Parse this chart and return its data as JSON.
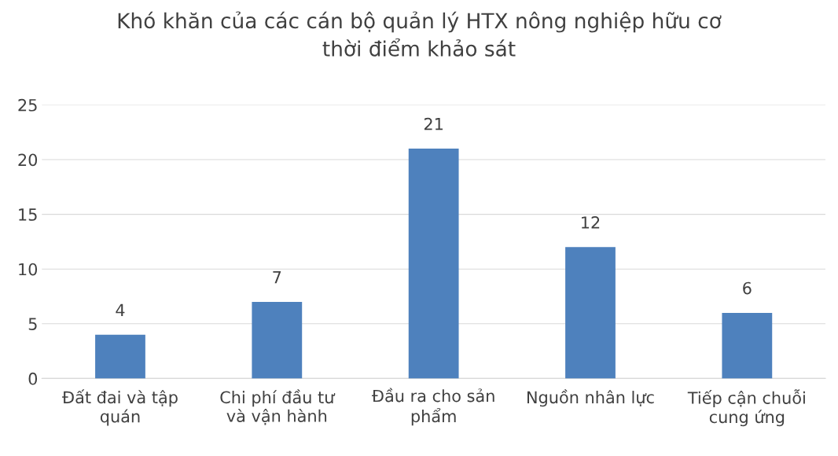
{
  "chart_data": {
    "type": "bar",
    "title": "Khó khăn của các cán bộ quản lý HTX nông nghiệp hữu cơ\nthời điểm khảo sát",
    "categories": [
      "Đất đai và tập\nquán",
      "Chi phí đầu tư\nvà vận hành",
      "Đầu ra cho sản\nphẩm",
      "Nguồn nhân lực",
      "Tiếp cận chuỗi\ncung ứng"
    ],
    "values": [
      4,
      7,
      21,
      12,
      6
    ],
    "color": "#4e81bd",
    "ylim": [
      0,
      25
    ],
    "yticks": [
      0,
      5,
      10,
      15,
      20,
      25
    ],
    "grid": "y",
    "data_labels": true
  }
}
